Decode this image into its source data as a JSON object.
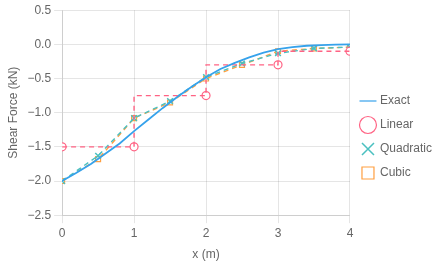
{
  "chart_data": {
    "type": "line",
    "xlabel": "x (m)",
    "ylabel": "Shear Force (kN)",
    "xlim": [
      0,
      4
    ],
    "ylim": [
      -2.5,
      0.5
    ],
    "xticks": [
      0,
      1,
      2,
      3,
      4
    ],
    "yticks": [
      {
        "value": -2.5,
        "label": "−2.5"
      },
      {
        "value": -2.0,
        "label": "−2.0"
      },
      {
        "value": -1.5,
        "label": "−1.5"
      },
      {
        "value": -1.0,
        "label": "−1.0"
      },
      {
        "value": -0.5,
        "label": "−0.5"
      },
      {
        "value": 0.0,
        "label": "0.0"
      },
      {
        "value": 0.5,
        "label": "0.5"
      }
    ],
    "grid": true,
    "legend": "right",
    "series": [
      {
        "name": "Exact",
        "line_style": "solid",
        "marker": "none",
        "x": [
          0.0,
          0.2,
          0.4,
          0.6,
          0.8,
          1.0,
          1.2,
          1.4,
          1.6,
          1.8,
          2.0,
          2.2,
          2.4,
          2.6,
          2.8,
          3.0,
          3.2,
          3.4,
          3.6,
          3.8,
          4.0
        ],
        "values": [
          -2.0,
          -1.88,
          -1.75,
          -1.6,
          -1.45,
          -1.27,
          -1.1,
          -0.93,
          -0.77,
          -0.62,
          -0.48,
          -0.36,
          -0.27,
          -0.19,
          -0.12,
          -0.07,
          -0.04,
          -0.02,
          -0.01,
          -0.005,
          0.0
        ]
      },
      {
        "line_style": "dashed",
        "marker": "none",
        "x": [
          0,
          1,
          1,
          2,
          2,
          3,
          3,
          4
        ],
        "values": [
          -1.5,
          -1.5,
          -0.75,
          -0.75,
          -0.3,
          -0.3,
          -0.1,
          -0.1
        ]
      },
      {
        "name": "Linear",
        "line_style": "none",
        "marker": "circle",
        "x": [
          0,
          1,
          2,
          3,
          4
        ],
        "values": [
          -1.5,
          -1.5,
          -0.75,
          -0.3,
          -0.1
        ]
      },
      {
        "name": "Quadratic",
        "line_style": "dashed",
        "marker": "x",
        "x": [
          0,
          0.5,
          1.0,
          1.5,
          2.0,
          2.5,
          3.0,
          3.5,
          4.0
        ],
        "values": [
          -2.0,
          -1.63,
          -1.08,
          -0.83,
          -0.48,
          -0.28,
          -0.13,
          -0.06,
          -0.04
        ]
      },
      {
        "name": "Cubic",
        "line_style": "dashed",
        "marker": "square",
        "x": [
          0,
          0.5,
          1.0,
          1.5,
          2.0,
          2.5,
          3.0,
          3.5,
          4.0
        ],
        "values": [
          -2.0,
          -1.68,
          -1.08,
          -0.85,
          -0.5,
          -0.3,
          -0.1,
          -0.06,
          -0.04
        ]
      }
    ]
  }
}
